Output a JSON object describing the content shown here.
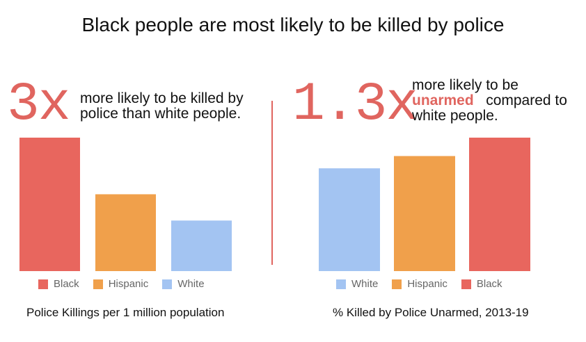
{
  "title": "Black people are most likely to be killed by police",
  "left": {
    "big_number": "3x",
    "callout": "more likely to be killed by police than white people.",
    "caption": "Police Killings per 1 million population"
  },
  "right": {
    "big_number": "1.3x",
    "callout_pre": "more likely to be",
    "callout_emphasis": "unarmed",
    "callout_post": "compared to white people.",
    "caption": "% Killed by Police Unarmed, 2013-19"
  },
  "colors": {
    "black": "#e8665e",
    "hispanic": "#f0a04b",
    "white": "#a3c4f2",
    "accent": "#e0655f"
  },
  "chart_data": [
    {
      "type": "bar",
      "categories": [
        "Black",
        "Hispanic",
        "White"
      ],
      "values": [
        6.6,
        3.8,
        2.5
      ],
      "ylim": [
        0,
        6.6
      ],
      "title": "",
      "xlabel": "Police Killings per 1 million population",
      "ylabel": "",
      "grid": false,
      "legend": [
        "Black",
        "Hispanic",
        "White"
      ],
      "legend_placement": "bottom"
    },
    {
      "type": "bar",
      "categories": [
        "White",
        "Hispanic",
        "Black"
      ],
      "values": [
        13.4,
        15.0,
        17.4
      ],
      "ylim": [
        0,
        17.4
      ],
      "title": "",
      "xlabel": "% Killed by Police Unarmed, 2013-19",
      "ylabel": "",
      "grid": false,
      "legend": [
        "White",
        "Hispanic",
        "Black"
      ],
      "legend_placement": "bottom"
    }
  ]
}
